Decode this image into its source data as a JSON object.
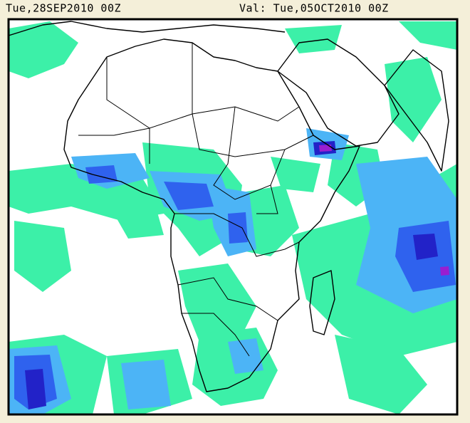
{
  "header": {
    "init_time": "Tue,28SEP2010 00Z",
    "valid_time": "Val: Tue,05OCT2010 00Z"
  }
}
